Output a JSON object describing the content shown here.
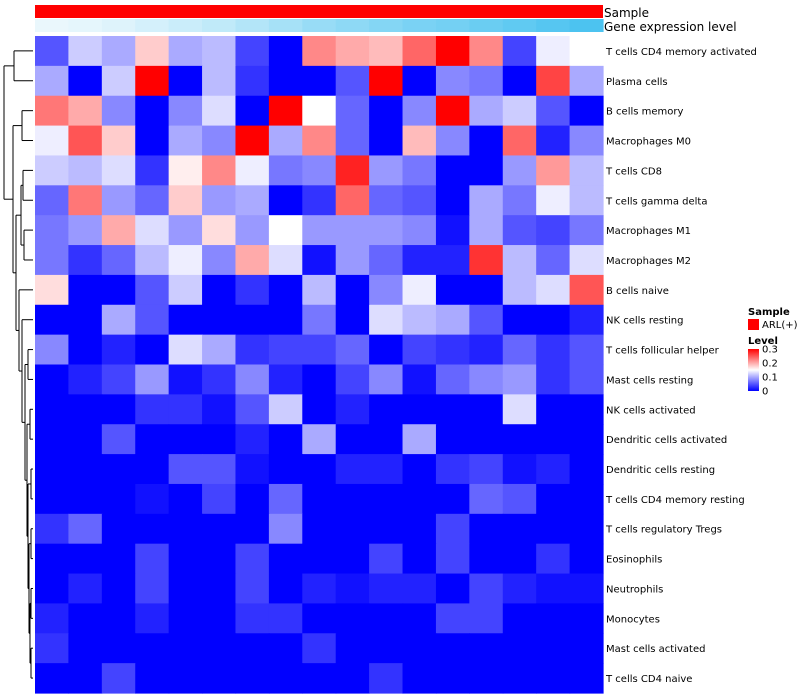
{
  "chart_data": {
    "type": "heatmap",
    "title": "",
    "annotation_tracks": [
      {
        "name": "Sample",
        "color": "#ff0000"
      },
      {
        "name": "Gene expression level",
        "color_low": "#f2fafd",
        "color_high": "#4cc3f0"
      }
    ],
    "rows": [
      "T cells CD4 memory activated",
      "Plasma cells",
      "B cells memory",
      "Macrophages M0",
      "T cells CD8",
      "T cells gamma delta",
      "Macrophages M1",
      "Macrophages M2",
      "B cells naive",
      "NK cells resting",
      "T cells follicular helper",
      "Mast cells resting",
      "NK cells activated",
      "Dendritic cells activated",
      "Dendritic cells resting",
      "T cells CD4 memory resting",
      "T cells regulatory  Tregs",
      "Eosinophils",
      "Neutrophils",
      "Monocytes",
      "Mast cells activated",
      "T cells CD4 naive"
    ],
    "n_columns": 17,
    "values": [
      [
        0.05,
        0.12,
        0.1,
        0.18,
        0.1,
        0.11,
        0.04,
        0.0,
        0.22,
        0.2,
        0.19,
        0.24,
        0.3,
        0.22,
        0.04,
        0.14,
        0.15
      ],
      [
        0.1,
        0.0,
        0.12,
        0.3,
        0.0,
        0.11,
        0.03,
        0.0,
        0.0,
        0.05,
        0.3,
        0.0,
        0.08,
        0.07,
        0.0,
        0.26,
        0.1
      ],
      [
        0.23,
        0.2,
        0.08,
        0.0,
        0.08,
        0.13,
        0.0,
        0.3,
        0.15,
        0.06,
        0.0,
        0.08,
        0.3,
        0.1,
        0.12,
        0.05,
        0.0
      ],
      [
        0.14,
        0.25,
        0.18,
        0.0,
        0.1,
        0.08,
        0.3,
        0.1,
        0.22,
        0.06,
        0.0,
        0.19,
        0.08,
        0.0,
        0.24,
        0.02,
        0.08
      ],
      [
        0.12,
        0.11,
        0.13,
        0.03,
        0.16,
        0.22,
        0.14,
        0.07,
        0.08,
        0.28,
        0.09,
        0.07,
        0.0,
        0.0,
        0.09,
        0.21,
        0.11
      ],
      [
        0.06,
        0.23,
        0.09,
        0.06,
        0.18,
        0.09,
        0.1,
        0.0,
        0.03,
        0.24,
        0.06,
        0.05,
        0.0,
        0.1,
        0.07,
        0.14,
        0.11
      ],
      [
        0.07,
        0.09,
        0.2,
        0.13,
        0.09,
        0.17,
        0.09,
        0.15,
        0.09,
        0.09,
        0.09,
        0.08,
        0.01,
        0.1,
        0.05,
        0.04,
        0.07
      ],
      [
        0.07,
        0.03,
        0.06,
        0.11,
        0.14,
        0.08,
        0.2,
        0.13,
        0.01,
        0.09,
        0.06,
        0.02,
        0.02,
        0.27,
        0.11,
        0.06,
        0.13
      ],
      [
        0.17,
        0.0,
        0.0,
        0.05,
        0.12,
        0.0,
        0.03,
        0.0,
        0.11,
        0.0,
        0.08,
        0.14,
        0.0,
        0.0,
        0.11,
        0.13,
        0.25
      ],
      [
        0.0,
        0.0,
        0.1,
        0.05,
        0.0,
        0.0,
        0.0,
        0.0,
        0.07,
        0.0,
        0.13,
        0.11,
        0.1,
        0.05,
        0.0,
        0.0,
        0.02
      ],
      [
        0.08,
        0.0,
        0.02,
        0.0,
        0.13,
        0.1,
        0.03,
        0.04,
        0.04,
        0.06,
        0.0,
        0.04,
        0.03,
        0.02,
        0.06,
        0.03,
        0.05
      ],
      [
        0.0,
        0.02,
        0.04,
        0.09,
        0.01,
        0.03,
        0.08,
        0.02,
        0.0,
        0.04,
        0.08,
        0.01,
        0.06,
        0.08,
        0.09,
        0.03,
        0.05
      ],
      [
        0.0,
        0.0,
        0.0,
        0.03,
        0.03,
        0.01,
        0.05,
        0.12,
        0.0,
        0.02,
        0.0,
        0.0,
        0.0,
        0.0,
        0.13,
        0.0,
        0.0
      ],
      [
        0.0,
        0.0,
        0.05,
        0.0,
        0.0,
        0.0,
        0.02,
        0.0,
        0.1,
        0.0,
        0.0,
        0.1,
        0.0,
        0.0,
        0.0,
        0.0,
        0.0
      ],
      [
        0.0,
        0.0,
        0.0,
        0.0,
        0.05,
        0.05,
        0.01,
        0.0,
        0.0,
        0.02,
        0.02,
        0.0,
        0.03,
        0.04,
        0.01,
        0.02,
        0.0
      ],
      [
        0.0,
        0.0,
        0.0,
        0.01,
        0.0,
        0.04,
        0.0,
        0.06,
        0.0,
        0.0,
        0.0,
        0.0,
        0.0,
        0.06,
        0.05,
        0.0,
        0.0
      ],
      [
        0.03,
        0.06,
        0.0,
        0.0,
        0.0,
        0.0,
        0.0,
        0.08,
        0.0,
        0.0,
        0.0,
        0.0,
        0.04,
        0.0,
        0.0,
        0.0,
        0.0
      ],
      [
        0.0,
        0.0,
        0.0,
        0.04,
        0.0,
        0.0,
        0.04,
        0.0,
        0.0,
        0.0,
        0.04,
        0.0,
        0.04,
        0.0,
        0.0,
        0.03,
        0.0
      ],
      [
        0.0,
        0.02,
        0.0,
        0.04,
        0.0,
        0.0,
        0.04,
        0.0,
        0.02,
        0.01,
        0.02,
        0.02,
        0.0,
        0.04,
        0.02,
        0.01,
        0.01
      ],
      [
        0.02,
        0.0,
        0.0,
        0.02,
        0.0,
        0.0,
        0.03,
        0.03,
        0.0,
        0.0,
        0.0,
        0.0,
        0.04,
        0.04,
        0.0,
        0.0,
        0.0
      ],
      [
        0.03,
        0.0,
        0.0,
        0.0,
        0.0,
        0.0,
        0.0,
        0.0,
        0.03,
        0.0,
        0.0,
        0.0,
        0.0,
        0.0,
        0.0,
        0.0,
        0.0
      ],
      [
        0.0,
        0.0,
        0.04,
        0.0,
        0.0,
        0.0,
        0.0,
        0.0,
        0.0,
        0.0,
        0.03,
        0.0,
        0.0,
        0.0,
        0.0,
        0.0,
        0.0
      ]
    ],
    "gene_expression_track": [
      0.05,
      0.08,
      0.12,
      0.18,
      0.24,
      0.3,
      0.38,
      0.46,
      0.54,
      0.6,
      0.66,
      0.72,
      0.76,
      0.82,
      0.88,
      0.94,
      1.0
    ],
    "color_scale": {
      "min": 0,
      "max": 0.3,
      "low": "#0000ff",
      "mid": "#ffffff",
      "high": "#ff0000"
    },
    "legend": {
      "sample_title": "Sample",
      "sample_item": "ARL(+)",
      "sample_color": "#ff0000",
      "level_title": "Level",
      "level_ticks": [
        "0.3",
        "0.2",
        "0.1",
        "0"
      ],
      "level_tick_values": [
        0.3,
        0.2,
        0.1,
        0
      ],
      "position": "right"
    },
    "dendrogram": "rows"
  }
}
